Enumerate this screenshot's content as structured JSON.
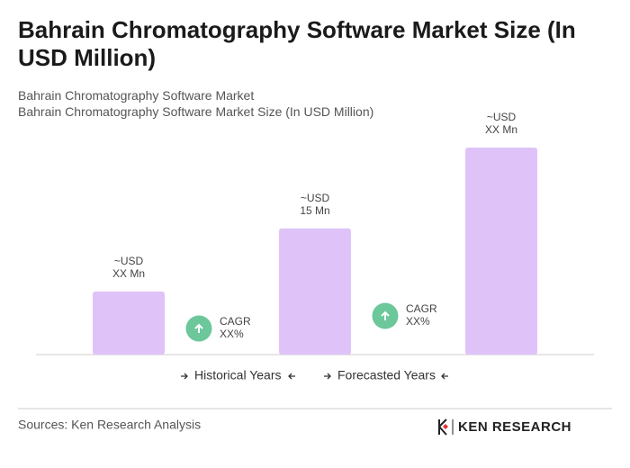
{
  "chart_data": {
    "type": "bar",
    "title": "Bahrain Chromatography Software Market Size (In USD Million)",
    "subtitle": "Bahrain Chromatography Software Market",
    "subtitle2": "Bahrain Chromatography Software Market Size (In USD Million)",
    "categories": [
      null,
      null,
      null
    ],
    "values": [
      7.5,
      15,
      24.6
    ],
    "value_labels": [
      [
        "~USD",
        "XX Mn"
      ],
      [
        "~USD",
        "15 Mn"
      ],
      [
        "~USD",
        "XX Mn"
      ]
    ],
    "color": "#dfc3f8",
    "annotations": [
      [
        "CAGR",
        "XX%"
      ],
      [
        "CAGR",
        "XX%"
      ]
    ],
    "annotation_color": "#6cc79a",
    "periods": [
      "Historical Years",
      "Forecasted Years"
    ],
    "source": "Sources: Ken Research Analysis",
    "logo": "KEN RESEARCH"
  }
}
